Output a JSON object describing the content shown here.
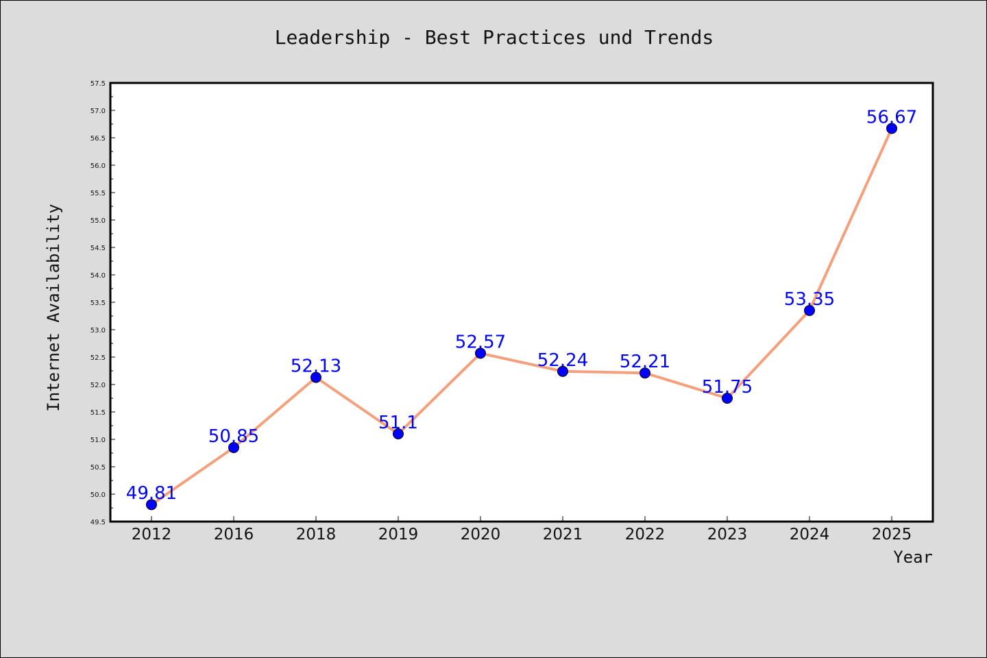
{
  "colors": {
    "background": "#dcdcdc",
    "plot_background": "#ffffff",
    "line": "#f4a07c",
    "marker": "#0000ff",
    "data_label": "#0000ff",
    "text": "#111111"
  },
  "chart_data": {
    "type": "line",
    "title": "Leadership - Best Practices und Trends",
    "xlabel": "Year",
    "ylabel": "Internet Availability",
    "categories": [
      "2012",
      "2016",
      "2018",
      "2019",
      "2020",
      "2021",
      "2022",
      "2023",
      "2024",
      "2025"
    ],
    "series": [
      {
        "values": [
          49.81,
          50.85,
          52.13,
          51.1,
          52.57,
          52.24,
          52.21,
          51.75,
          53.35,
          56.67
        ],
        "labels": [
          "49.81",
          "50.85",
          "52.13",
          "51.1",
          "52.57",
          "52.24",
          "52.21",
          "51.75",
          "53.35",
          "56.67"
        ]
      }
    ],
    "ylim": [
      49.5,
      57.5
    ],
    "yticks": [
      "49.5",
      "50.0",
      "50.5",
      "51.0",
      "51.5",
      "52.0",
      "52.5",
      "53.0",
      "53.5",
      "54.0",
      "54.5",
      "55.0",
      "55.5",
      "56.0",
      "56.5",
      "57.0",
      "57.5"
    ],
    "grid": false,
    "legend": "none"
  }
}
